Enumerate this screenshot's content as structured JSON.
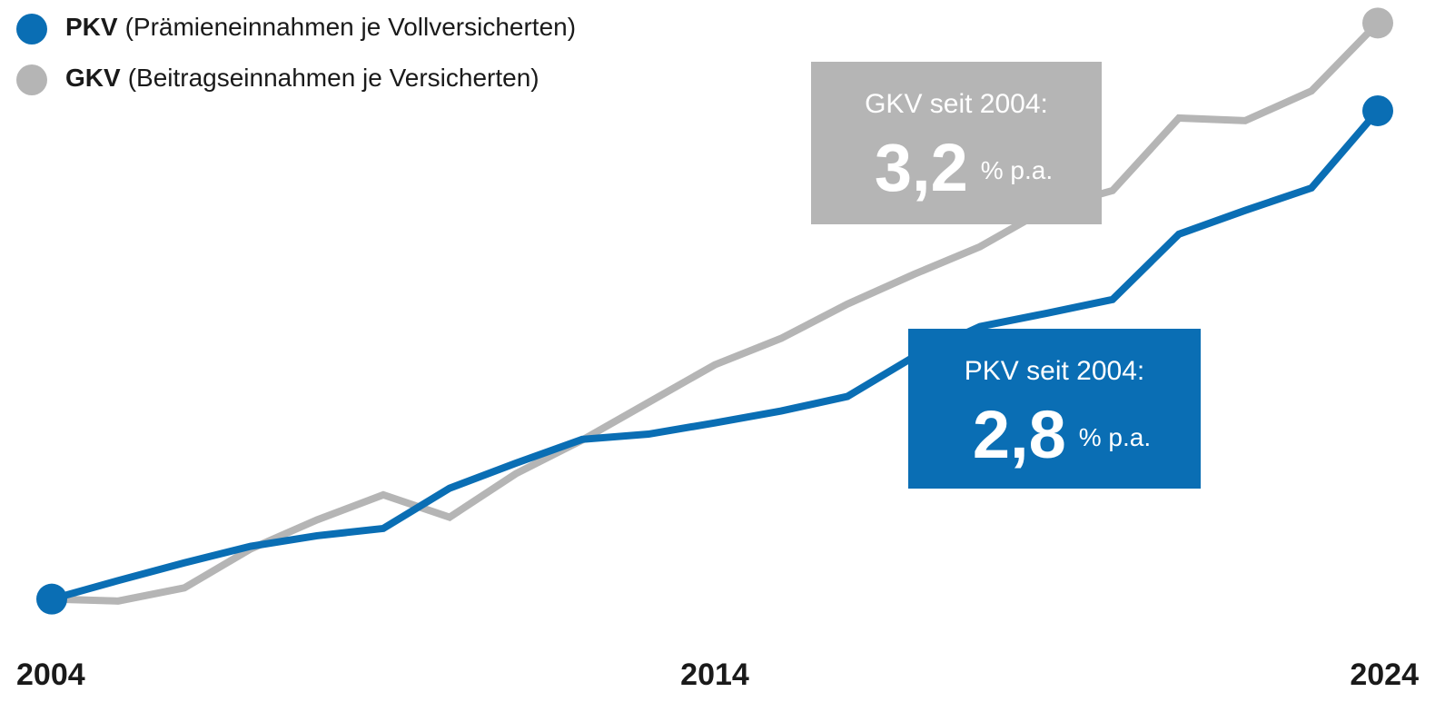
{
  "chart_data": {
    "type": "line",
    "categories": [
      "2004",
      null,
      null,
      null,
      null,
      null,
      null,
      null,
      null,
      null,
      "2014",
      null,
      null,
      null,
      null,
      null,
      null,
      null,
      null,
      null,
      "2024"
    ],
    "series": [
      {
        "name": "GKV",
        "legend_label": "(Beitragseinnahmen je Versicherten)",
        "color": "#b5b5b5",
        "values": [
          100,
          99.7,
          101.7,
          107.6,
          112,
          115.8,
          112.4,
          119,
          124.1,
          129.8,
          135.5,
          139.5,
          144.7,
          149.2,
          153.4,
          159.1,
          161.9,
          172.9,
          172.5,
          177,
          187.3
        ]
      },
      {
        "name": "PKV",
        "legend_label": "(Prämieneinnahmen je Vollversicherten)",
        "color": "#0a6eb4",
        "values": [
          100,
          102.8,
          105.5,
          108,
          109.6,
          110.7,
          116.8,
          120.6,
          124.2,
          125,
          126.7,
          128.5,
          130.7,
          136.7,
          141.3,
          143.3,
          145.4,
          155.3,
          158.9,
          162.3,
          174
        ]
      }
    ],
    "ylim": [
      95,
      190
    ],
    "annotations": [
      {
        "heading": "GKV seit 2004:",
        "rate": "3,2",
        "unit": "% p.a.",
        "color": "#b5b5b5"
      },
      {
        "heading": "PKV seit 2004:",
        "rate": "2,8",
        "unit": "% p.a.",
        "color": "#0a6eb4"
      }
    ]
  }
}
